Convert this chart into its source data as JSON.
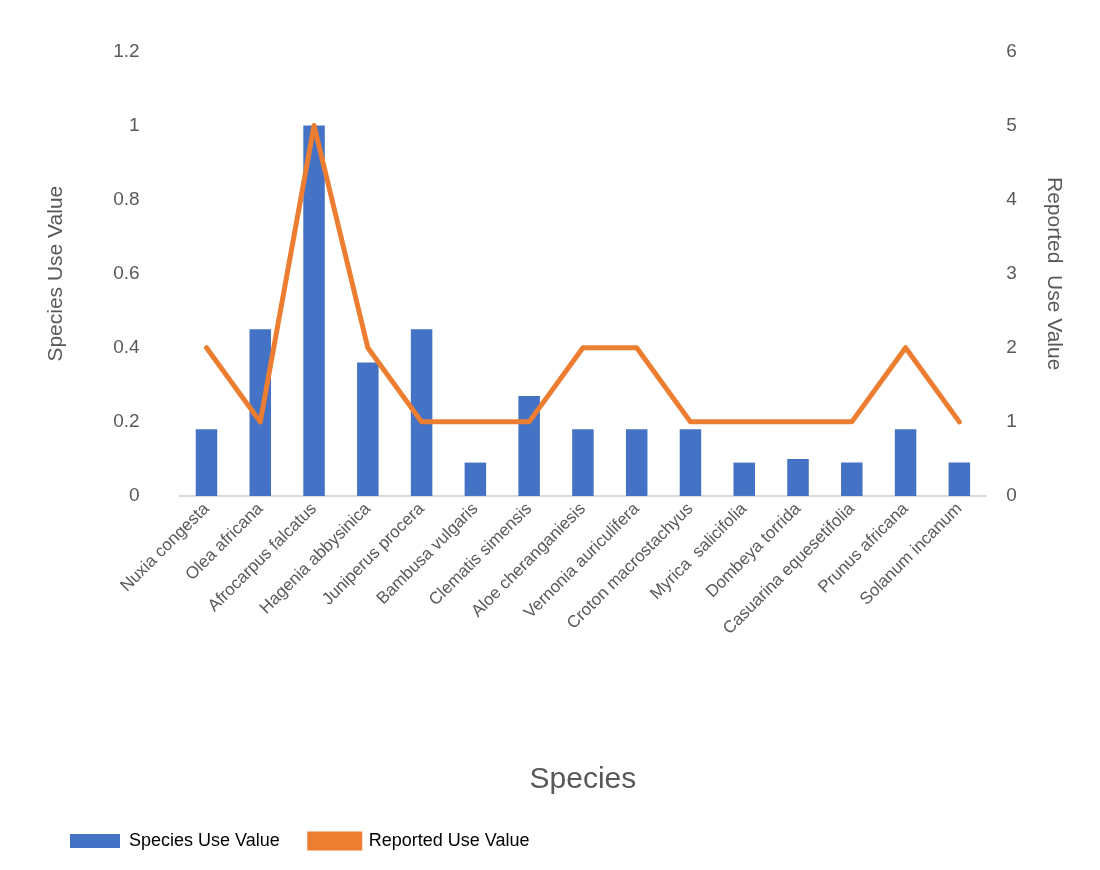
{
  "chart_data": {
    "type": "bar",
    "xlabel": "Species",
    "ylabel": "Species Use Value",
    "y2label": "Reported  Use Value",
    "categories": [
      "Nuxia congesta",
      "Olea africana",
      "Afrocarpus falcatus",
      "Hagenia abbysinica",
      "Juniperus procera",
      "Bambusa vulgaris",
      "Clematis simensis",
      "Aloe cheranganiesis",
      "Vernonia auriculifera",
      "Croton macrostachyus",
      "Myrica  salicifolia",
      "Dombeya torrida",
      "Casuarina equesetifolia",
      "Prunus africana",
      "Solanum incanum"
    ],
    "series": [
      {
        "name": "Species Use Value",
        "color": "#4472c4",
        "values": [
          0.18,
          0.45,
          1.0,
          0.36,
          0.45,
          0.09,
          0.27,
          0.18,
          0.18,
          0.18,
          0.09,
          0.1,
          0.09,
          0.18,
          0.09
        ]
      },
      {
        "name": "Reported Use Value",
        "type": "line",
        "axis": "y2",
        "color": "#ed7d31",
        "values": [
          2,
          1,
          5,
          2,
          1,
          1,
          1,
          2,
          2,
          1,
          1,
          1,
          1,
          2,
          1
        ]
      }
    ],
    "ylim": [
      0,
      1.2
    ],
    "yticks": [
      0,
      0.2,
      0.4,
      0.6,
      0.8,
      1,
      1.2
    ],
    "y2lim": [
      0,
      6
    ],
    "y2ticks": [
      0,
      1,
      2,
      3,
      4,
      5,
      6
    ],
    "grid": false,
    "legend": "bottom left",
    "marker": "none",
    "line_style": "solid"
  }
}
